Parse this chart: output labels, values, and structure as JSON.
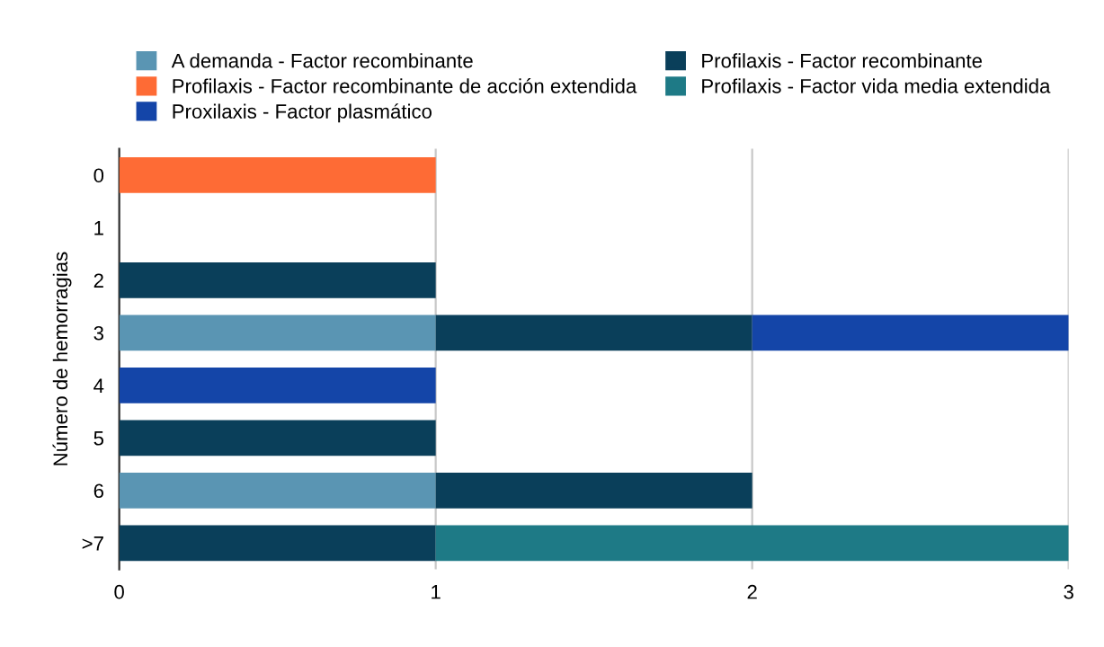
{
  "chart_data": {
    "type": "bar",
    "orientation": "horizontal",
    "stacked": true,
    "ylabel": "Número de hemorragias",
    "categories": [
      "0",
      "1",
      "2",
      "3",
      "4",
      "5",
      "6",
      ">7"
    ],
    "series": [
      {
        "name": "A demanda - Factor recombinante",
        "color": "#5a95b3",
        "values": [
          null,
          null,
          null,
          1,
          null,
          null,
          1,
          null
        ]
      },
      {
        "name": "Profilaxis - Factor recombinante",
        "color": "#0a3f5a",
        "values": [
          null,
          null,
          1,
          1,
          null,
          1,
          1,
          1
        ]
      },
      {
        "name": "Profilaxis - Factor recombinante de acción extendida",
        "color": "#fe6b35",
        "values": [
          1,
          null,
          null,
          null,
          null,
          null,
          null,
          null
        ]
      },
      {
        "name": "Profilaxis - Factor vida media extendida",
        "color": "#1e7a86",
        "values": [
          null,
          null,
          null,
          null,
          null,
          null,
          null,
          2
        ]
      },
      {
        "name": "Proxilaxis - Factor plasmático",
        "color": "#1445a8",
        "values": [
          null,
          null,
          null,
          1,
          1,
          null,
          null,
          null
        ]
      }
    ],
    "xlim": [
      0,
      3
    ],
    "xticks": [
      0,
      1,
      2,
      3
    ],
    "grid": "x",
    "legend": "top"
  }
}
